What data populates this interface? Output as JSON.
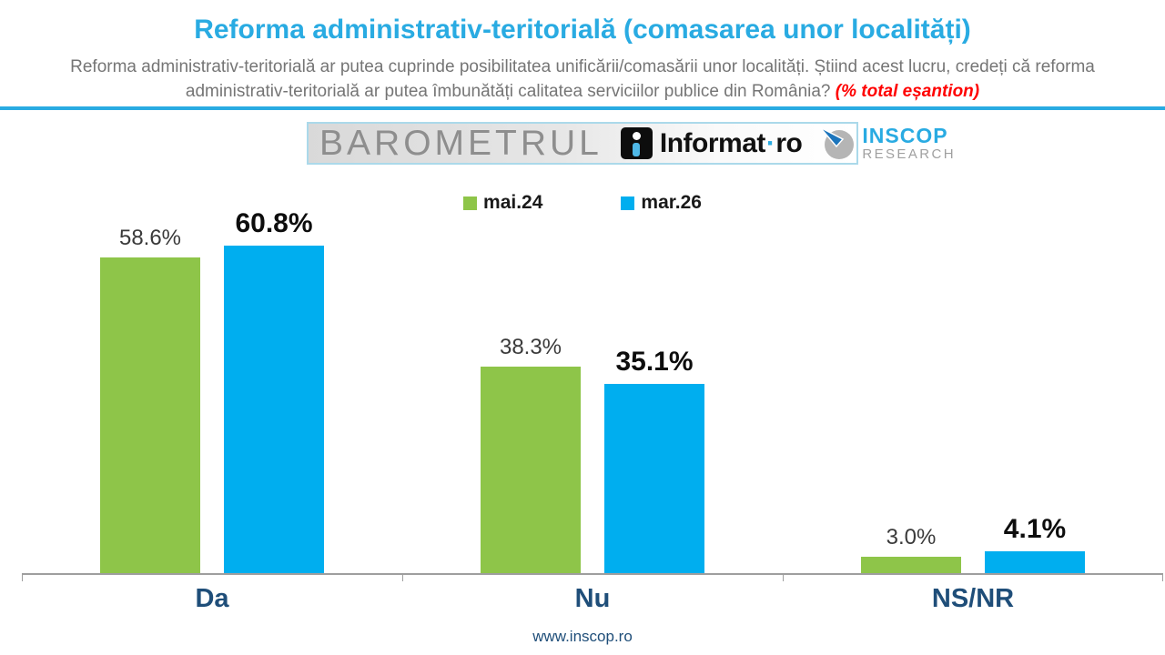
{
  "header": {
    "title": "Reforma administrativ-teritorială (comasarea unor localități)",
    "subtitle": "Reforma administrativ-teritorială ar putea cuprinde posibilitatea unificării/comasării unor localități. Știind acest lucru, credeți că reforma administrativ-teritorială ar putea îmbunătăți calitatea serviciilor publice din România? ",
    "subtitle_note": "(% total eșantion)"
  },
  "logos": {
    "barometrul": "BAROMETRUL",
    "informat": {
      "name": "Informat",
      "dot": "·",
      "tld": "ro"
    },
    "inscop": {
      "line1": "INSCOP",
      "line2": "RESEARCH"
    }
  },
  "chart_data": {
    "type": "bar",
    "title": "Reforma administrativ-teritorială (comasarea unor localități)",
    "categories": [
      "Da",
      "Nu",
      "NS/NR"
    ],
    "series": [
      {
        "name": "mai.24",
        "color": "#8EC549",
        "values": [
          58.6,
          38.3,
          3.0
        ]
      },
      {
        "name": "mar.26",
        "color": "#00AEEF",
        "values": [
          60.8,
          35.1,
          4.1
        ]
      }
    ],
    "value_suffix": "%",
    "ylim": [
      0,
      70
    ],
    "grid": false,
    "legend_position": "top-center",
    "xlabel": "",
    "ylabel": ""
  },
  "footer": {
    "url": "www.inscop.ro"
  },
  "colors": {
    "accent_blue": "#29ABE2",
    "category_label": "#1F4E79",
    "axis_gray": "#9E9E9E",
    "subtitle_gray": "#757575",
    "note_red": "#FF0000",
    "series_green": "#8EC549",
    "series_blue": "#00AEEF"
  }
}
